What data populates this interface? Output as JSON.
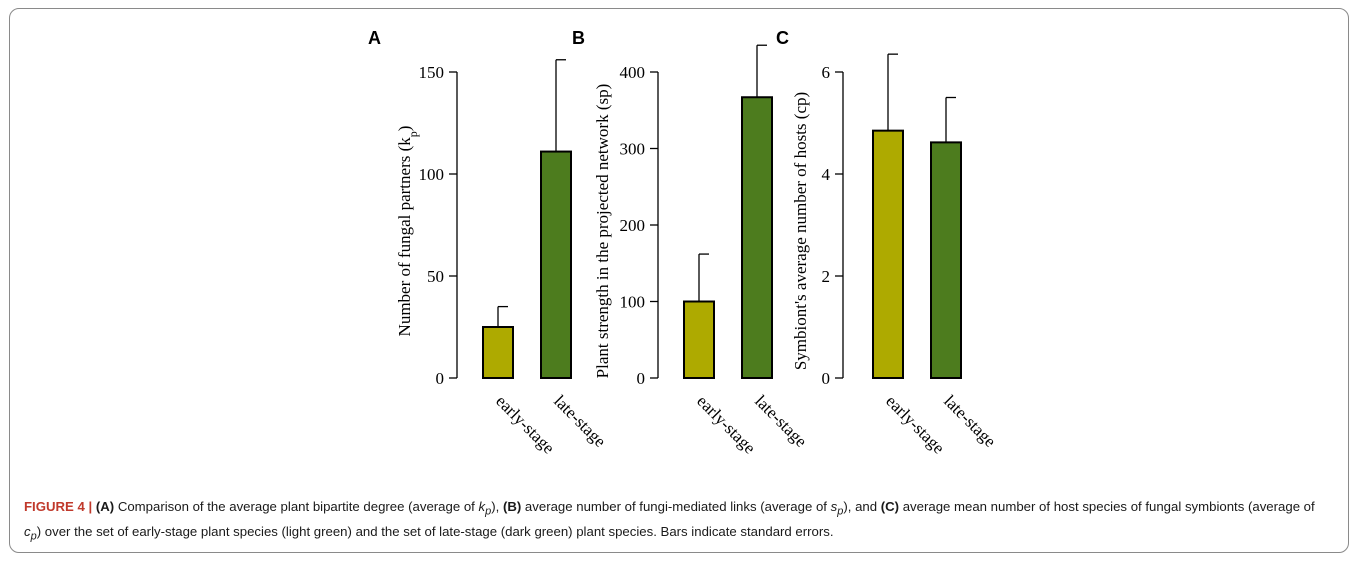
{
  "colors": {
    "early": "#aeaa00",
    "late": "#4d7c1e",
    "outline": "#000000",
    "figure_label": "#c0392b"
  },
  "chart_data": [
    {
      "type": "bar",
      "panel": "A",
      "categories": [
        "early-stage",
        "late-stage"
      ],
      "values": [
        25,
        111
      ],
      "errors": [
        10,
        45
      ],
      "ylabel": "Number of fungal partners (k_p)",
      "ylabel_main": "Number of fungal partners (k",
      "ylabel_sub": "p",
      "ylabel_tail": ")",
      "ylim": [
        0,
        150
      ],
      "yticks": [
        0,
        50,
        100,
        150
      ],
      "colors": [
        "#aeaa00",
        "#4d7c1e"
      ]
    },
    {
      "type": "bar",
      "panel": "B",
      "categories": [
        "early-stage",
        "late-stage"
      ],
      "values": [
        100,
        367
      ],
      "errors": [
        62,
        68
      ],
      "ylabel": "Plant strength in the projected network (sp)",
      "ylim": [
        0,
        400
      ],
      "yticks": [
        0,
        100,
        200,
        300,
        400
      ],
      "colors": [
        "#aeaa00",
        "#4d7c1e"
      ]
    },
    {
      "type": "bar",
      "panel": "C",
      "categories": [
        "early-stage",
        "late-stage"
      ],
      "values": [
        4.85,
        4.62
      ],
      "errors": [
        1.5,
        0.88
      ],
      "ylabel": "Symbiont's average number of hosts (cp)",
      "ylim": [
        0,
        6
      ],
      "yticks": [
        0,
        2,
        4,
        6
      ],
      "colors": [
        "#aeaa00",
        "#4d7c1e"
      ]
    }
  ],
  "caption": {
    "figure_label": "FIGURE 4 | ",
    "A_tag": "(A)",
    "A_text": " Comparison of the average plant bipartite degree (average of ",
    "A_var": "k",
    "A_var_sub": "p",
    "after_A": "), ",
    "B_tag": "(B)",
    "B_text": " average number of fungi-mediated links (average of ",
    "B_var": "s",
    "B_var_sub": "p",
    "after_B": "), and ",
    "C_tag": "(C)",
    "C_text": " average mean number of host species of fungal symbionts (average of ",
    "C_var": "c",
    "C_var_sub": "p",
    "rest": ") over the set of early-stage plant species (light green) and the set of late-stage (dark green) plant species. Bars indicate standard errors."
  }
}
